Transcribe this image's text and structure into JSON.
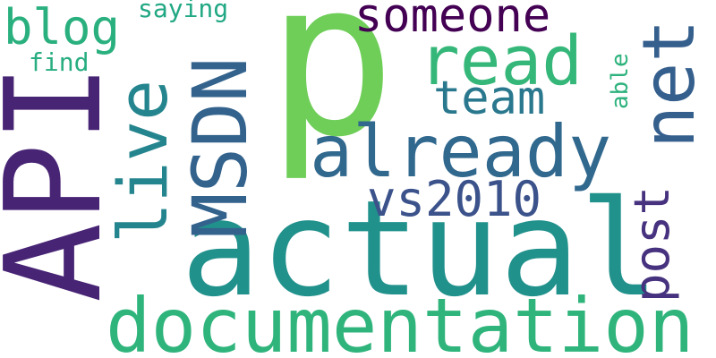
{
  "words": {
    "p": {
      "text": "p",
      "color": "#6ece58"
    },
    "actual": {
      "text": "actual",
      "color": "#21918c"
    },
    "documentation": {
      "text": "documentation",
      "color": "#2fb47c"
    },
    "already": {
      "text": "already",
      "color": "#31688e"
    },
    "read": {
      "text": "read",
      "color": "#35b779"
    },
    "blog": {
      "text": "blog",
      "color": "#2ab07f"
    },
    "someone": {
      "text": "someone",
      "color": "#440154"
    },
    "team": {
      "text": "team",
      "color": "#2a788e"
    },
    "vs2010": {
      "text": "vs2010",
      "color": "#3b528b"
    },
    "saying": {
      "text": "saying",
      "color": "#22a884"
    },
    "find": {
      "text": "find",
      "color": "#27ad81"
    },
    "api": {
      "text": "API",
      "color": "#482475"
    },
    "msdn": {
      "text": "MSDN",
      "color": "#33638d"
    },
    "live": {
      "text": "live",
      "color": "#25858e"
    },
    "net": {
      "text": "net",
      "color": "#355f8d"
    },
    "post": {
      "text": "post",
      "color": "#46327e"
    },
    "able": {
      "text": "able",
      "color": "#2db27d"
    }
  }
}
